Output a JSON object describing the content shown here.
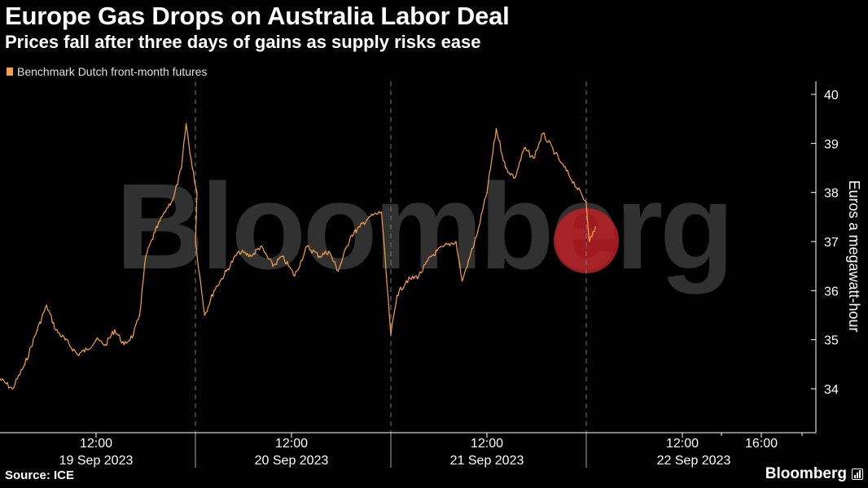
{
  "header": {
    "title": "Europe Gas Drops on Australia Labor Deal",
    "subtitle": "Prices fall after three days of gains as supply risks ease"
  },
  "footer": {
    "source": "Source: ICE",
    "brand": "Bloomberg"
  },
  "colors": {
    "series": "#f5a14a",
    "background": "#000000",
    "axis": "#ffffff",
    "divider": "#777777"
  },
  "chart_data": {
    "type": "line",
    "title": "Europe Gas Drops on Australia Labor Deal",
    "subtitle": "Prices fall after three days of gains as supply risks ease",
    "ylabel": "Euros a megawatt-hour",
    "xlabel": "",
    "ylim": [
      33.3,
      40.1
    ],
    "yticks": [
      34,
      35,
      36,
      37,
      38,
      39,
      40
    ],
    "y_axis_position": "right",
    "grid": false,
    "legend": "top-left",
    "time_ticks": [
      "12:00",
      "12:00",
      "12:00",
      "12:00",
      "16:00"
    ],
    "day_labels": [
      "19 Sep 2023",
      "20 Sep 2023",
      "21 Sep 2023",
      "22 Sep 2023"
    ],
    "series": [
      {
        "name": "Benchmark Dutch front-month futures",
        "points": [
          [
            "19 Sep 2023 08:00",
            34.2
          ],
          [
            "19 Sep 2023 08:40",
            34.0
          ],
          [
            "19 Sep 2023 09:20",
            34.5
          ],
          [
            "19 Sep 2023 10:00",
            35.2
          ],
          [
            "19 Sep 2023 10:30",
            35.7
          ],
          [
            "19 Sep 2023 11:00",
            35.2
          ],
          [
            "19 Sep 2023 11:30",
            35.0
          ],
          [
            "19 Sep 2023 12:10",
            34.7
          ],
          [
            "19 Sep 2023 12:40",
            34.8
          ],
          [
            "19 Sep 2023 13:10",
            35.0
          ],
          [
            "19 Sep 2023 13:40",
            34.9
          ],
          [
            "19 Sep 2023 14:10",
            35.2
          ],
          [
            "19 Sep 2023 14:40",
            34.9
          ],
          [
            "19 Sep 2023 15:10",
            35.1
          ],
          [
            "19 Sep 2023 15:30",
            35.5
          ],
          [
            "19 Sep 2023 15:50",
            36.7
          ],
          [
            "19 Sep 2023 16:20",
            37.2
          ],
          [
            "19 Sep 2023 16:50",
            37.6
          ],
          [
            "19 Sep 2023 17:20",
            37.9
          ],
          [
            "19 Sep 2023 17:45",
            38.5
          ],
          [
            "19 Sep 2023 18:00",
            39.4
          ],
          [
            "19 Sep 2023 18:20",
            38.5
          ],
          [
            "19 Sep 2023 18:35",
            38.0
          ],
          [
            "20 Sep 2023 08:00",
            37.0
          ],
          [
            "20 Sep 2023 08:30",
            35.5
          ],
          [
            "20 Sep 2023 09:00",
            36.0
          ],
          [
            "20 Sep 2023 09:40",
            36.4
          ],
          [
            "20 Sep 2023 10:20",
            36.8
          ],
          [
            "20 Sep 2023 11:00",
            36.7
          ],
          [
            "20 Sep 2023 11:30",
            36.9
          ],
          [
            "20 Sep 2023 12:10",
            36.5
          ],
          [
            "20 Sep 2023 12:40",
            36.7
          ],
          [
            "20 Sep 2023 13:20",
            36.3
          ],
          [
            "20 Sep 2023 14:00",
            36.9
          ],
          [
            "20 Sep 2023 14:40",
            36.7
          ],
          [
            "20 Sep 2023 15:10",
            36.8
          ],
          [
            "20 Sep 2023 15:40",
            36.4
          ],
          [
            "20 Sep 2023 16:20",
            37.1
          ],
          [
            "20 Sep 2023 16:50",
            37.3
          ],
          [
            "20 Sep 2023 17:20",
            37.5
          ],
          [
            "20 Sep 2023 18:00",
            37.6
          ],
          [
            "21 Sep 2023 08:00",
            35.1
          ],
          [
            "21 Sep 2023 08:20",
            35.9
          ],
          [
            "21 Sep 2023 08:50",
            36.2
          ],
          [
            "21 Sep 2023 09:30",
            36.3
          ],
          [
            "21 Sep 2023 10:10",
            36.7
          ],
          [
            "21 Sep 2023 10:50",
            36.9
          ],
          [
            "21 Sep 2023 11:30",
            37.0
          ],
          [
            "21 Sep 2023 11:50",
            36.2
          ],
          [
            "21 Sep 2023 12:10",
            36.6
          ],
          [
            "21 Sep 2023 12:40",
            37.2
          ],
          [
            "21 Sep 2023 13:10",
            38.0
          ],
          [
            "21 Sep 2023 13:40",
            39.3
          ],
          [
            "21 Sep 2023 14:10",
            38.5
          ],
          [
            "21 Sep 2023 14:40",
            38.3
          ],
          [
            "21 Sep 2023 15:10",
            38.9
          ],
          [
            "21 Sep 2023 15:40",
            38.7
          ],
          [
            "21 Sep 2023 16:10",
            39.2
          ],
          [
            "21 Sep 2023 16:50",
            38.8
          ],
          [
            "21 Sep 2023 17:10",
            38.6
          ],
          [
            "22 Sep 2023 08:00",
            37.8
          ],
          [
            "22 Sep 2023 08:10",
            37.0
          ],
          [
            "22 Sep 2023 08:30",
            37.3
          ]
        ]
      }
    ]
  }
}
